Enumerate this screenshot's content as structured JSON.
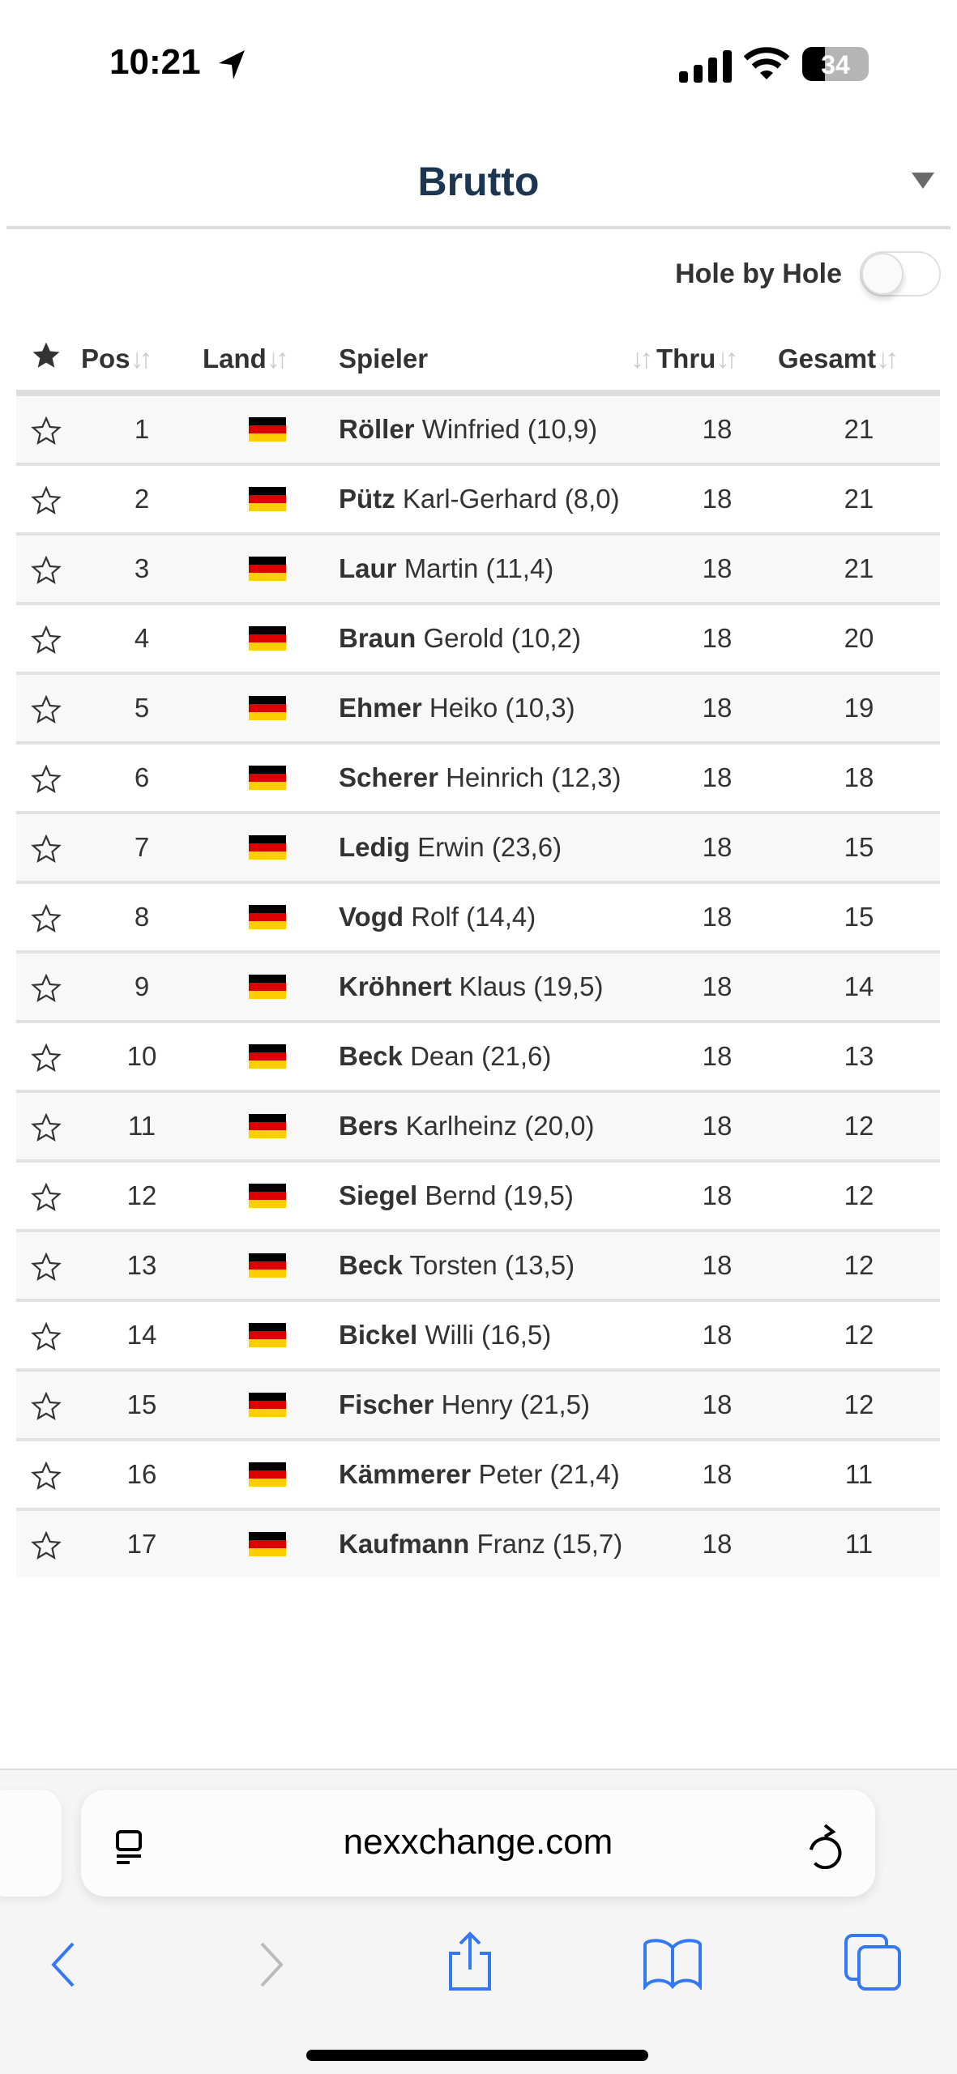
{
  "status_bar": {
    "time": "10:21",
    "battery": "34"
  },
  "header": {
    "title": "Brutto"
  },
  "toggle": {
    "label": "Hole by Hole",
    "on": false
  },
  "table": {
    "columns": {
      "pos": "Pos",
      "land": "Land",
      "player": "Spieler",
      "thru": "Thru",
      "total": "Gesamt"
    },
    "rows": [
      {
        "pos": "1",
        "last": "Röller",
        "first": "Winfried (10,9)",
        "thru": "18",
        "total": "21"
      },
      {
        "pos": "2",
        "last": "Pütz",
        "first": "Karl-Gerhard (8,0)",
        "thru": "18",
        "total": "21"
      },
      {
        "pos": "3",
        "last": "Laur",
        "first": "Martin (11,4)",
        "thru": "18",
        "total": "21"
      },
      {
        "pos": "4",
        "last": "Braun",
        "first": "Gerold (10,2)",
        "thru": "18",
        "total": "20"
      },
      {
        "pos": "5",
        "last": "Ehmer",
        "first": "Heiko (10,3)",
        "thru": "18",
        "total": "19"
      },
      {
        "pos": "6",
        "last": "Scherer",
        "first": "Heinrich (12,3)",
        "thru": "18",
        "total": "18"
      },
      {
        "pos": "7",
        "last": "Ledig",
        "first": "Erwin (23,6)",
        "thru": "18",
        "total": "15"
      },
      {
        "pos": "8",
        "last": "Vogd",
        "first": "Rolf (14,4)",
        "thru": "18",
        "total": "15"
      },
      {
        "pos": "9",
        "last": "Kröhnert",
        "first": "Klaus (19,5)",
        "thru": "18",
        "total": "14"
      },
      {
        "pos": "10",
        "last": "Beck",
        "first": "Dean (21,6)",
        "thru": "18",
        "total": "13"
      },
      {
        "pos": "11",
        "last": "Bers",
        "first": "Karlheinz (20,0)",
        "thru": "18",
        "total": "12"
      },
      {
        "pos": "12",
        "last": "Siegel",
        "first": "Bernd (19,5)",
        "thru": "18",
        "total": "12"
      },
      {
        "pos": "13",
        "last": "Beck",
        "first": "Torsten (13,5)",
        "thru": "18",
        "total": "12"
      },
      {
        "pos": "14",
        "last": "Bickel",
        "first": "Willi (16,5)",
        "thru": "18",
        "total": "12"
      },
      {
        "pos": "15",
        "last": "Fischer",
        "first": "Henry (21,5)",
        "thru": "18",
        "total": "12"
      },
      {
        "pos": "16",
        "last": "Kämmerer",
        "first": "Peter (21,4)",
        "thru": "18",
        "total": "11"
      },
      {
        "pos": "17",
        "last": "Kaufmann",
        "first": "Franz (15,7)",
        "thru": "18",
        "total": "11"
      }
    ]
  },
  "browser": {
    "url": "nexxchange.com"
  },
  "colors": {
    "title": "#1c3550",
    "accent": "#3478f6",
    "flag": [
      "#000000",
      "#dd0000",
      "#ffce00"
    ]
  }
}
